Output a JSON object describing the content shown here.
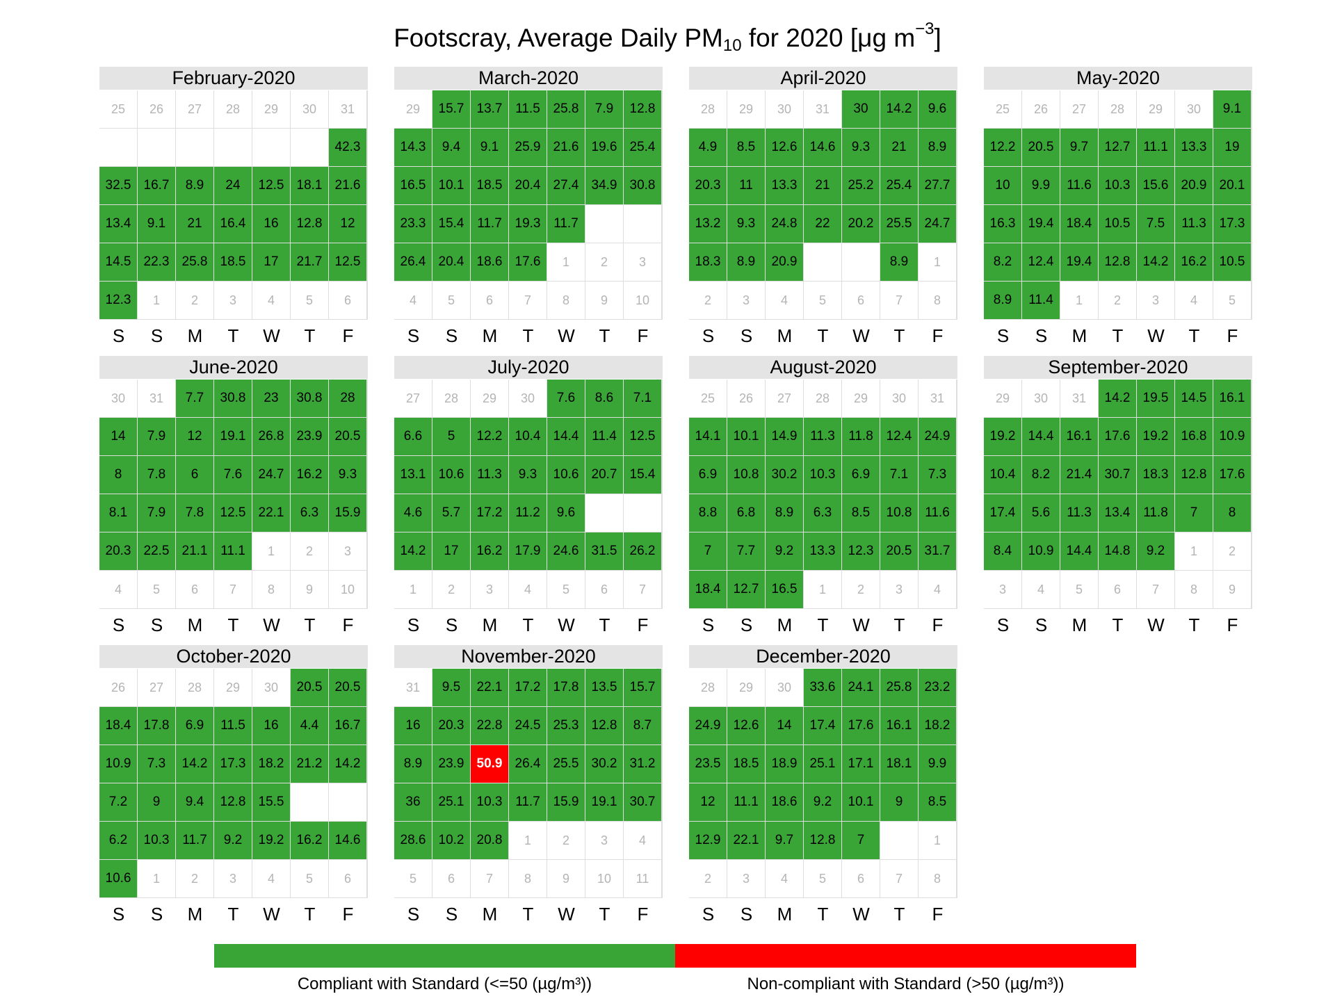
{
  "chart_data": {
    "type": "heatmap",
    "title": {
      "prefix": "Footscray, Average Daily PM",
      "sub": "10",
      "mid": " for 2020 [μg m",
      "sup": "−3",
      "suffix": "]"
    },
    "weekday_labels": [
      "S",
      "S",
      "M",
      "T",
      "W",
      "T",
      "F"
    ],
    "colors": {
      "compliant": "#3aa537",
      "noncompliant": "#ff0000"
    },
    "threshold": 50,
    "legend": [
      {
        "label": "Compliant with Standard (<=50 (µg/m³))",
        "color": "#3aa537"
      },
      {
        "label": "Non-compliant with Standard (>50 (µg/m³))",
        "color": "#ff0000"
      }
    ],
    "months": [
      {
        "label": "February-2020",
        "rows": [
          [
            "25",
            "26",
            "27",
            "28",
            "29",
            "30",
            "31"
          ],
          [
            "",
            "",
            "",
            "",
            "",
            "",
            42.3
          ],
          [
            32.5,
            16.7,
            8.9,
            24,
            12.5,
            18.1,
            21.6
          ],
          [
            13.4,
            9.1,
            21,
            16.4,
            16,
            12.8,
            12
          ],
          [
            14.5,
            22.3,
            25.8,
            18.5,
            17,
            21.7,
            12.5
          ],
          [
            12.3,
            "1",
            "2",
            "3",
            "4",
            "5",
            "6"
          ]
        ]
      },
      {
        "label": "March-2020",
        "rows": [
          [
            "29",
            15.7,
            13.7,
            11.5,
            25.8,
            7.9,
            12.8
          ],
          [
            14.3,
            9.4,
            9.1,
            25.9,
            21.6,
            19.6,
            25.4
          ],
          [
            16.5,
            10.1,
            18.5,
            20.4,
            27.4,
            34.9,
            30.8
          ],
          [
            23.3,
            15.4,
            11.7,
            19.3,
            11.7,
            "",
            ""
          ],
          [
            26.4,
            20.4,
            18.6,
            17.6,
            "1",
            "2",
            "3"
          ],
          [
            "4",
            "5",
            "6",
            "7",
            "8",
            "9",
            "10"
          ]
        ]
      },
      {
        "label": "April-2020",
        "rows": [
          [
            "28",
            "29",
            "30",
            "31",
            30,
            14.2,
            9.6
          ],
          [
            4.9,
            8.5,
            12.6,
            14.6,
            9.3,
            21,
            8.9
          ],
          [
            20.3,
            11,
            13.3,
            21,
            25.2,
            25.4,
            27.7
          ],
          [
            13.2,
            9.3,
            24.8,
            22,
            20.2,
            25.5,
            24.7
          ],
          [
            18.3,
            8.9,
            20.9,
            "",
            "",
            8.9,
            "1"
          ],
          [
            "2",
            "3",
            "4",
            "5",
            "6",
            "7",
            "8"
          ]
        ]
      },
      {
        "label": "May-2020",
        "rows": [
          [
            "25",
            "26",
            "27",
            "28",
            "29",
            "30",
            9.1
          ],
          [
            12.2,
            20.5,
            9.7,
            12.7,
            11.1,
            13.3,
            19
          ],
          [
            10,
            9.9,
            11.6,
            10.3,
            15.6,
            20.9,
            20.1
          ],
          [
            16.3,
            19.4,
            18.4,
            10.5,
            7.5,
            11.3,
            17.3
          ],
          [
            8.2,
            12.4,
            19.4,
            12.8,
            14.2,
            16.2,
            10.5
          ],
          [
            8.9,
            11.4,
            "1",
            "2",
            "3",
            "4",
            "5"
          ]
        ]
      },
      {
        "label": "June-2020",
        "rows": [
          [
            "30",
            "31",
            7.7,
            30.8,
            23,
            30.8,
            28
          ],
          [
            14,
            7.9,
            12,
            19.1,
            26.8,
            23.9,
            20.5
          ],
          [
            8,
            7.8,
            6,
            7.6,
            24.7,
            16.2,
            9.3
          ],
          [
            8.1,
            7.9,
            7.8,
            12.5,
            22.1,
            6.3,
            15.9
          ],
          [
            20.3,
            22.5,
            21.1,
            11.1,
            "1",
            "2",
            "3"
          ],
          [
            "4",
            "5",
            "6",
            "7",
            "8",
            "9",
            "10"
          ]
        ]
      },
      {
        "label": "July-2020",
        "rows": [
          [
            "27",
            "28",
            "29",
            "30",
            7.6,
            8.6,
            7.1
          ],
          [
            6.6,
            5,
            12.2,
            10.4,
            14.4,
            11.4,
            12.5
          ],
          [
            13.1,
            10.6,
            11.3,
            9.3,
            10.6,
            20.7,
            15.4
          ],
          [
            4.6,
            5.7,
            17.2,
            11.2,
            9.6,
            "",
            ""
          ],
          [
            14.2,
            17,
            16.2,
            17.9,
            24.6,
            31.5,
            26.2
          ],
          [
            "1",
            "2",
            "3",
            "4",
            "5",
            "6",
            "7"
          ]
        ]
      },
      {
        "label": "August-2020",
        "rows": [
          [
            "25",
            "26",
            "27",
            "28",
            "29",
            "30",
            "31"
          ],
          [
            14.1,
            10.1,
            14.9,
            11.3,
            11.8,
            12.4,
            24.9
          ],
          [
            6.9,
            10.8,
            30.2,
            10.3,
            6.9,
            7.1,
            7.3
          ],
          [
            8.8,
            6.8,
            8.9,
            6.3,
            8.5,
            10.8,
            11.6
          ],
          [
            7,
            7.7,
            9.2,
            13.3,
            12.3,
            20.5,
            31.7
          ],
          [
            18.4,
            12.7,
            16.5,
            "1",
            "2",
            "3",
            "4"
          ]
        ]
      },
      {
        "label": "September-2020",
        "rows": [
          [
            "29",
            "30",
            "31",
            14.2,
            19.5,
            14.5,
            16.1
          ],
          [
            19.2,
            14.4,
            16.1,
            17.6,
            19.2,
            16.8,
            10.9
          ],
          [
            10.4,
            8.2,
            21.4,
            30.7,
            18.3,
            12.8,
            17.6
          ],
          [
            17.4,
            5.6,
            11.3,
            13.4,
            11.8,
            7,
            8
          ],
          [
            8.4,
            10.9,
            14.4,
            14.8,
            9.2,
            "1",
            "2"
          ],
          [
            "3",
            "4",
            "5",
            "6",
            "7",
            "8",
            "9"
          ]
        ]
      },
      {
        "label": "October-2020",
        "rows": [
          [
            "26",
            "27",
            "28",
            "29",
            "30",
            20.5,
            20.5
          ],
          [
            18.4,
            17.8,
            6.9,
            11.5,
            16,
            4.4,
            16.7
          ],
          [
            10.9,
            7.3,
            14.2,
            17.3,
            18.2,
            21.2,
            14.2
          ],
          [
            7.2,
            9,
            9.4,
            12.8,
            15.5,
            "",
            ""
          ],
          [
            6.2,
            10.3,
            11.7,
            9.2,
            19.2,
            16.2,
            14.6
          ],
          [
            10.6,
            "1",
            "2",
            "3",
            "4",
            "5",
            "6"
          ]
        ]
      },
      {
        "label": "November-2020",
        "rows": [
          [
            "31",
            9.5,
            22.1,
            17.2,
            17.8,
            13.5,
            15.7
          ],
          [
            16,
            20.3,
            22.8,
            24.5,
            25.3,
            12.8,
            8.7
          ],
          [
            8.9,
            23.9,
            50.9,
            26.4,
            25.5,
            30.2,
            31.2
          ],
          [
            36,
            25.1,
            10.3,
            11.7,
            15.9,
            19.1,
            30.7
          ],
          [
            28.6,
            10.2,
            20.8,
            "1",
            "2",
            "3",
            "4"
          ],
          [
            "5",
            "6",
            "7",
            "8",
            "9",
            "10",
            "11"
          ]
        ]
      },
      {
        "label": "December-2020",
        "rows": [
          [
            "28",
            "29",
            "30",
            33.6,
            24.1,
            25.8,
            23.2
          ],
          [
            24.9,
            12.6,
            14,
            17.4,
            17.6,
            16.1,
            18.2
          ],
          [
            23.5,
            18.5,
            18.9,
            25.1,
            17.1,
            18.1,
            9.9
          ],
          [
            12,
            11.1,
            18.6,
            9.2,
            10.1,
            9,
            8.5
          ],
          [
            12.9,
            22.1,
            9.7,
            12.8,
            7,
            "",
            "1"
          ],
          [
            "2",
            "3",
            "4",
            "5",
            "6",
            "7",
            "8"
          ]
        ]
      }
    ]
  }
}
